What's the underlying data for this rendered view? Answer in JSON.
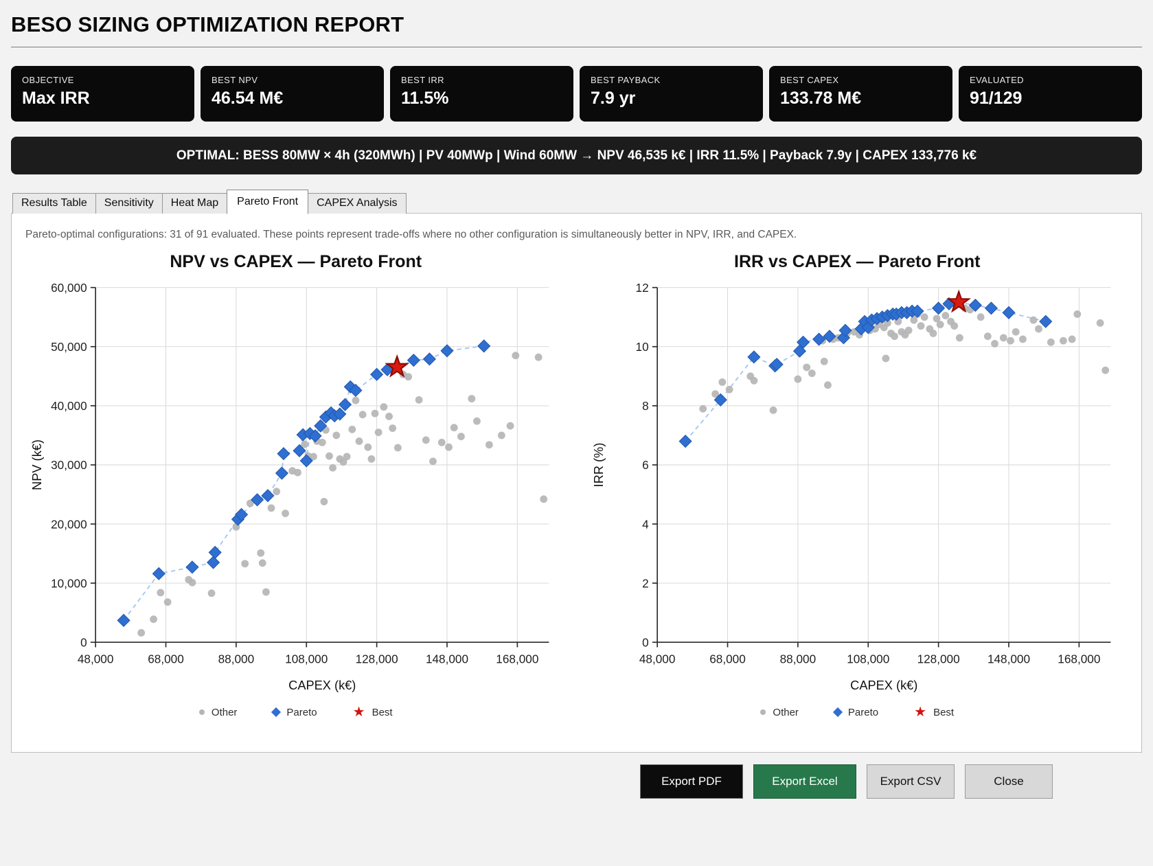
{
  "header": {
    "title": "BESO SIZING OPTIMIZATION REPORT"
  },
  "kpis": [
    {
      "label": "OBJECTIVE",
      "value": "Max IRR"
    },
    {
      "label": "BEST NPV",
      "value": "46.54 M€"
    },
    {
      "label": "BEST IRR",
      "value": "11.5%"
    },
    {
      "label": "BEST PAYBACK",
      "value": "7.9 yr"
    },
    {
      "label": "BEST CAPEX",
      "value": "133.78 M€"
    },
    {
      "label": "EVALUATED",
      "value": "91/129"
    }
  ],
  "optimal_banner": "OPTIMAL: BESS 80MW × 4h (320MWh) | PV 40MWp | Wind 60MW → NPV 46,535 k€ | IRR 11.5% | Payback 7.9y | CAPEX 133,776 k€",
  "tabs": [
    {
      "label": "Results Table",
      "active": false
    },
    {
      "label": "Sensitivity",
      "active": false
    },
    {
      "label": "Heat Map",
      "active": false
    },
    {
      "label": "Pareto Front",
      "active": true
    },
    {
      "label": "CAPEX Analysis",
      "active": false
    }
  ],
  "pareto_tab": {
    "description": "Pareto-optimal configurations: 31 of 91 evaluated. These points represent trade-offs where no other configuration is simultaneously better in NPV, IRR, and CAPEX."
  },
  "footer_buttons": [
    {
      "label": "Export PDF",
      "variant": "dark"
    },
    {
      "label": "Export Excel",
      "variant": "green"
    },
    {
      "label": "Export CSV",
      "variant": "light"
    },
    {
      "label": "Close",
      "variant": "light"
    }
  ],
  "colors": {
    "pareto_blue": "#2f6fd2",
    "pareto_blue_stroke": "#2258ab",
    "pareto_line": "#a5c7f0",
    "other_gray": "#b5b5b5",
    "best_red": "#d81a10",
    "best_red_stroke": "#8c0c06",
    "excel_green": "#27794c"
  },
  "chart_data": [
    {
      "type": "scatter",
      "title": "NPV vs CAPEX — Pareto Front",
      "xlabel": "CAPEX (k€)",
      "ylabel": "NPV (k€)",
      "xlim": [
        48000,
        177000
      ],
      "ylim": [
        0,
        60000
      ],
      "xticks": [
        48000,
        68000,
        88000,
        108000,
        128000,
        148000,
        168000
      ],
      "xtick_labels": [
        "48,000",
        "68,000",
        "88,000",
        "108,000",
        "128,000",
        "148,000",
        "168,000"
      ],
      "yticks": [
        0,
        10000,
        20000,
        30000,
        40000,
        50000,
        60000
      ],
      "ytick_labels": [
        "0",
        "10,000",
        "20,000",
        "30,000",
        "40,000",
        "50,000",
        "60,000"
      ],
      "grid": true,
      "legend_position": "bottom",
      "series": [
        {
          "name": "Other",
          "marker": "circle",
          "color": "#b5b5b5",
          "points": [
            [
              61000,
              1600
            ],
            [
              64500,
              3900
            ],
            [
              66500,
              8400
            ],
            [
              68500,
              6800
            ],
            [
              74500,
              10600
            ],
            [
              75500,
              10100
            ],
            [
              81000,
              8300
            ],
            [
              88000,
              19500
            ],
            [
              90500,
              13300
            ],
            [
              92000,
              23500
            ],
            [
              95000,
              15100
            ],
            [
              95500,
              13400
            ],
            [
              96500,
              8500
            ],
            [
              98000,
              22700
            ],
            [
              99500,
              25500
            ],
            [
              102000,
              21800
            ],
            [
              104000,
              29000
            ],
            [
              105500,
              28700
            ],
            [
              107500,
              33500
            ],
            [
              108500,
              31500
            ],
            [
              110000,
              31400
            ],
            [
              111000,
              34000
            ],
            [
              112500,
              33800
            ],
            [
              113000,
              23800
            ],
            [
              113500,
              35900
            ],
            [
              114500,
              31500
            ],
            [
              115500,
              29500
            ],
            [
              116500,
              35000
            ],
            [
              117500,
              31000
            ],
            [
              118500,
              30500
            ],
            [
              119500,
              31400
            ],
            [
              121000,
              36000
            ],
            [
              122000,
              40900
            ],
            [
              123000,
              34000
            ],
            [
              124000,
              38500
            ],
            [
              125500,
              33000
            ],
            [
              126500,
              31000
            ],
            [
              127500,
              38700
            ],
            [
              128500,
              35500
            ],
            [
              130000,
              39800
            ],
            [
              131500,
              38200
            ],
            [
              132500,
              36200
            ],
            [
              134000,
              32900
            ],
            [
              135500,
              45300
            ],
            [
              137000,
              44900
            ],
            [
              140000,
              41000
            ],
            [
              142000,
              34200
            ],
            [
              144000,
              30600
            ],
            [
              146500,
              33800
            ],
            [
              148500,
              33000
            ],
            [
              150000,
              36300
            ],
            [
              152000,
              34800
            ],
            [
              155000,
              41200
            ],
            [
              156500,
              37400
            ],
            [
              160000,
              33400
            ],
            [
              163500,
              35000
            ],
            [
              166000,
              36600
            ],
            [
              167500,
              48500
            ],
            [
              174000,
              48200
            ],
            [
              175500,
              24200
            ]
          ]
        },
        {
          "name": "Pareto",
          "marker": "diamond",
          "color": "#2f6fd2",
          "line": "dashed",
          "line_color": "#a5c7f0",
          "points": [
            [
              56000,
              3700
            ],
            [
              66000,
              11600
            ],
            [
              75500,
              12700
            ],
            [
              81500,
              13500
            ],
            [
              82000,
              15200
            ],
            [
              88500,
              20800
            ],
            [
              89500,
              21600
            ],
            [
              94000,
              24100
            ],
            [
              97000,
              24800
            ],
            [
              101000,
              28600
            ],
            [
              101500,
              31900
            ],
            [
              106000,
              32400
            ],
            [
              107000,
              35100
            ],
            [
              108000,
              30700
            ],
            [
              109000,
              35300
            ],
            [
              110500,
              34900
            ],
            [
              112000,
              36600
            ],
            [
              113500,
              38100
            ],
            [
              115000,
              38800
            ],
            [
              116000,
              38300
            ],
            [
              117500,
              38600
            ],
            [
              119000,
              40200
            ],
            [
              120500,
              43200
            ],
            [
              122000,
              42600
            ],
            [
              128000,
              45300
            ],
            [
              131000,
              46100
            ],
            [
              138500,
              47700
            ],
            [
              143000,
              47900
            ],
            [
              148000,
              49300
            ],
            [
              158500,
              50100
            ]
          ]
        },
        {
          "name": "Best",
          "marker": "star",
          "color": "#d81a10",
          "points": [
            [
              133776,
              46535
            ]
          ]
        }
      ]
    },
    {
      "type": "scatter",
      "title": "IRR vs CAPEX — Pareto Front",
      "xlabel": "CAPEX (k€)",
      "ylabel": "IRR (%)",
      "xlim": [
        48000,
        177000
      ],
      "ylim": [
        0,
        12
      ],
      "xticks": [
        48000,
        68000,
        88000,
        108000,
        128000,
        148000,
        168000
      ],
      "xtick_labels": [
        "48,000",
        "68,000",
        "88,000",
        "108,000",
        "128,000",
        "148,000",
        "168,000"
      ],
      "yticks": [
        0,
        2,
        4,
        6,
        8,
        10,
        12
      ],
      "ytick_labels": [
        "0",
        "2",
        "4",
        "6",
        "8",
        "10",
        "12"
      ],
      "grid": true,
      "legend_position": "bottom",
      "series": [
        {
          "name": "Other",
          "marker": "circle",
          "color": "#b5b5b5",
          "points": [
            [
              61000,
              7.9
            ],
            [
              64500,
              8.4
            ],
            [
              66500,
              8.8
            ],
            [
              68500,
              8.55
            ],
            [
              74500,
              9.0
            ],
            [
              75500,
              8.85
            ],
            [
              81000,
              7.85
            ],
            [
              88000,
              8.9
            ],
            [
              90500,
              9.3
            ],
            [
              92000,
              9.1
            ],
            [
              95000,
              10.2
            ],
            [
              95500,
              9.5
            ],
            [
              96500,
              8.7
            ],
            [
              98000,
              10.25
            ],
            [
              99500,
              10.3
            ],
            [
              102000,
              10.45
            ],
            [
              104000,
              10.5
            ],
            [
              105500,
              10.4
            ],
            [
              107500,
              10.7
            ],
            [
              108500,
              10.55
            ],
            [
              110000,
              10.6
            ],
            [
              111000,
              10.75
            ],
            [
              112500,
              10.65
            ],
            [
              113000,
              9.6
            ],
            [
              113500,
              10.8
            ],
            [
              114500,
              10.45
            ],
            [
              115500,
              10.35
            ],
            [
              116500,
              10.85
            ],
            [
              117500,
              10.5
            ],
            [
              118500,
              10.4
            ],
            [
              119500,
              10.55
            ],
            [
              121000,
              10.9
            ],
            [
              122000,
              11.1
            ],
            [
              123000,
              10.7
            ],
            [
              124000,
              11.0
            ],
            [
              125500,
              10.6
            ],
            [
              126500,
              10.45
            ],
            [
              127500,
              10.95
            ],
            [
              128500,
              10.75
            ],
            [
              130000,
              11.05
            ],
            [
              131500,
              10.85
            ],
            [
              132500,
              10.7
            ],
            [
              134000,
              10.3
            ],
            [
              135500,
              11.3
            ],
            [
              137000,
              11.25
            ],
            [
              140000,
              11.0
            ],
            [
              142000,
              10.35
            ],
            [
              144000,
              10.1
            ],
            [
              146500,
              10.3
            ],
            [
              148500,
              10.2
            ],
            [
              150000,
              10.5
            ],
            [
              152000,
              10.25
            ],
            [
              155000,
              10.9
            ],
            [
              156500,
              10.6
            ],
            [
              160000,
              10.15
            ],
            [
              163500,
              10.2
            ],
            [
              166000,
              10.25
            ],
            [
              167500,
              11.1
            ],
            [
              174000,
              10.8
            ],
            [
              175500,
              9.2
            ]
          ]
        },
        {
          "name": "Pareto",
          "marker": "diamond",
          "color": "#2f6fd2",
          "line": "dashed",
          "line_color": "#a5c7f0",
          "points": [
            [
              56000,
              6.8
            ],
            [
              66000,
              8.2
            ],
            [
              75500,
              9.65
            ],
            [
              81500,
              9.35
            ],
            [
              82000,
              9.4
            ],
            [
              88500,
              9.85
            ],
            [
              89500,
              10.15
            ],
            [
              94000,
              10.25
            ],
            [
              97000,
              10.35
            ],
            [
              101000,
              10.3
            ],
            [
              101500,
              10.55
            ],
            [
              106000,
              10.6
            ],
            [
              107000,
              10.85
            ],
            [
              108000,
              10.65
            ],
            [
              109000,
              10.9
            ],
            [
              110500,
              10.95
            ],
            [
              112000,
              11.0
            ],
            [
              113500,
              11.05
            ],
            [
              115000,
              11.1
            ],
            [
              116000,
              11.1
            ],
            [
              117500,
              11.15
            ],
            [
              119000,
              11.15
            ],
            [
              120500,
              11.2
            ],
            [
              122000,
              11.2
            ],
            [
              128000,
              11.3
            ],
            [
              131000,
              11.45
            ],
            [
              138500,
              11.4
            ],
            [
              143000,
              11.3
            ],
            [
              148000,
              11.15
            ],
            [
              158500,
              10.85
            ]
          ]
        },
        {
          "name": "Best",
          "marker": "star",
          "color": "#d81a10",
          "points": [
            [
              133776,
              11.5
            ]
          ]
        }
      ]
    }
  ]
}
